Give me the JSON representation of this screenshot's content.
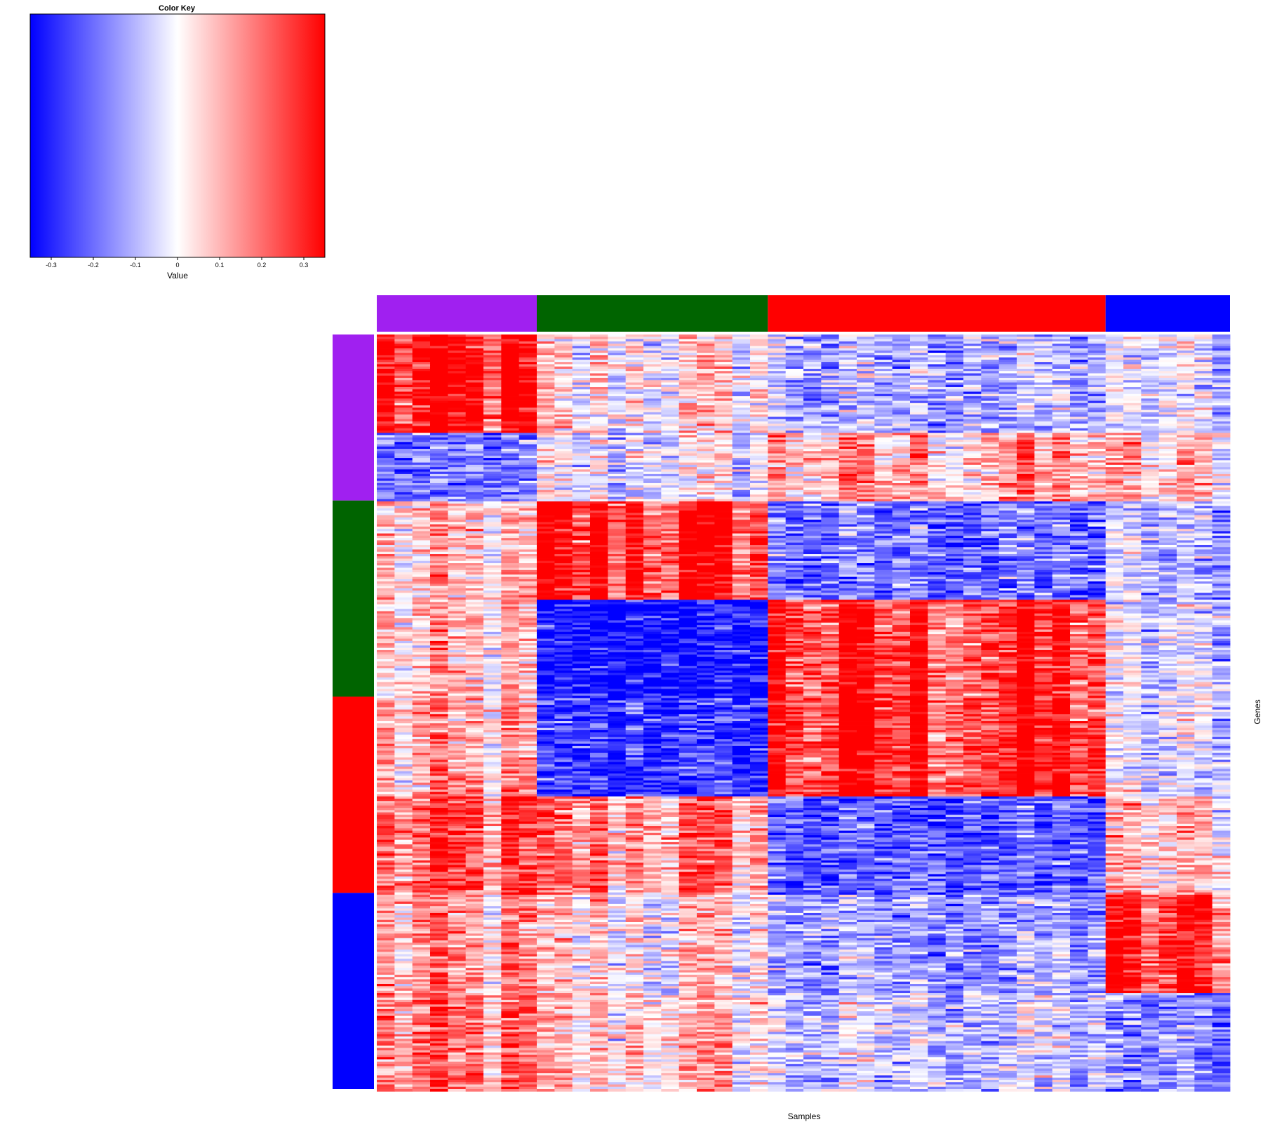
{
  "colors": {
    "low": "#0000ff",
    "mid": "#ffffff",
    "high": "#ff0000",
    "purple": "#a020f0",
    "green": "#006400",
    "red": "#ff0000",
    "blue": "#0000ff"
  },
  "chart_data": {
    "type": "heatmap",
    "xlabel": "Samples",
    "ylabel": "Genes",
    "color_key": {
      "title": "Color Key",
      "xlabel": "Value",
      "range": [
        -0.35,
        0.35
      ],
      "ticks": [
        -0.3,
        -0.2,
        -0.1,
        0,
        0.1,
        0.2,
        0.3
      ],
      "tick_labels": [
        "-0.3",
        "-0.2",
        "-0.1",
        "0",
        "0.1",
        "0.2",
        "0.3"
      ]
    },
    "column_groups": [
      {
        "color": "purple",
        "n_samples": 9
      },
      {
        "color": "green",
        "n_samples": 13
      },
      {
        "color": "red",
        "n_samples": 19
      },
      {
        "color": "blue",
        "n_samples": 7
      }
    ],
    "row_groups": [
      {
        "color": "purple",
        "fraction": 0.22
      },
      {
        "color": "green",
        "fraction": 0.26
      },
      {
        "color": "red",
        "fraction": 0.26
      },
      {
        "color": "blue",
        "fraction": 0.26
      }
    ],
    "row_blocks": [
      {
        "fraction": 0.13,
        "means": [
          0.28,
          0.02,
          -0.1,
          -0.05
        ]
      },
      {
        "fraction": 0.09,
        "means": [
          -0.18,
          -0.02,
          0.1,
          0.06
        ]
      },
      {
        "fraction": 0.13,
        "means": [
          0.05,
          0.27,
          -0.17,
          -0.1
        ]
      },
      {
        "fraction": 0.13,
        "means": [
          0.05,
          -0.3,
          0.25,
          -0.05
        ]
      },
      {
        "fraction": 0.13,
        "means": [
          0.08,
          -0.24,
          0.27,
          -0.05
        ]
      },
      {
        "fraction": 0.13,
        "means": [
          0.18,
          0.14,
          -0.2,
          0.05
        ]
      },
      {
        "fraction": 0.13,
        "means": [
          0.1,
          0.03,
          -0.12,
          0.24
        ]
      },
      {
        "fraction": 0.13,
        "means": [
          0.14,
          0.06,
          -0.06,
          -0.16
        ]
      }
    ],
    "n_genes": 330
  }
}
